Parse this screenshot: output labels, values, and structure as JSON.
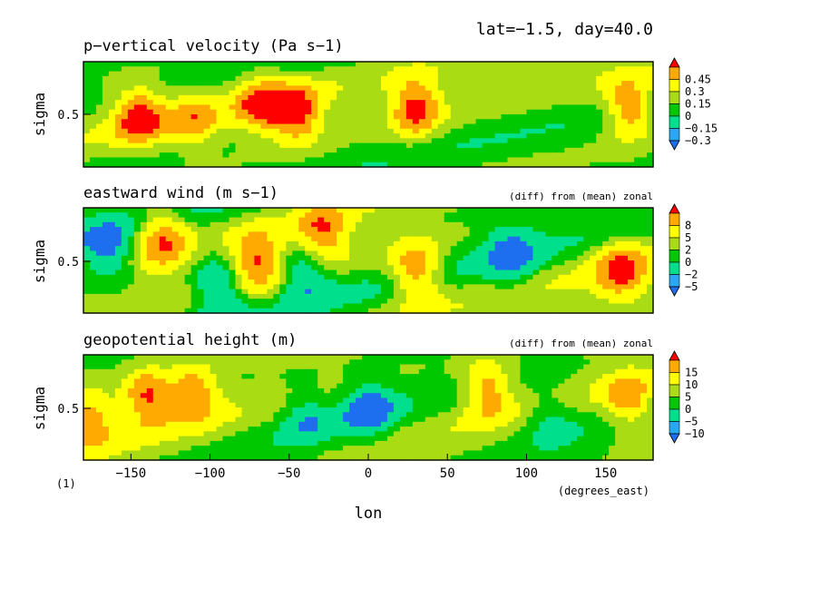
{
  "header": {
    "meta": "lat=−1.5, day=40.0",
    "footnote": "(1)"
  },
  "colors": {
    "levels": [
      "#1e6ff0",
      "#28a8f0",
      "#00e08c",
      "#00c800",
      "#aadc14",
      "#ffff00",
      "#ffaa00",
      "#ff0000"
    ]
  },
  "chart_data": [
    {
      "type": "heatmap",
      "title": "p−vertical velocity (Pa s−1)",
      "subtitle": "",
      "ylabel": "sigma",
      "yticks": [
        "0.5"
      ],
      "xlim": [
        -180,
        180
      ],
      "colorbar_labels": [
        "0.45",
        "0.3",
        "0.15",
        "0",
        "−0.15",
        "−0.3"
      ],
      "colorbar_values": [
        0.45,
        0.3,
        0.15,
        0,
        -0.15,
        -0.3
      ],
      "features": [
        {
          "lon": -145,
          "sigma": 0.5,
          "value": 0.5
        },
        {
          "lon": -110,
          "sigma": 0.55,
          "value": 0.3
        },
        {
          "lon": -68,
          "sigma": 0.4,
          "value": 0.45
        },
        {
          "lon": -45,
          "sigma": 0.5,
          "value": 0.5
        },
        {
          "lon": 30,
          "sigma": 0.45,
          "value": 0.5
        },
        {
          "lon": 165,
          "sigma": 0.45,
          "value": 0.5
        }
      ]
    },
    {
      "type": "heatmap",
      "title": "eastward wind (m s−1)",
      "subtitle": "(diff) from (mean) zonal",
      "ylabel": "sigma",
      "yticks": [
        "0.5"
      ],
      "xlim": [
        -180,
        180
      ],
      "colorbar_labels": [
        "8",
        "5",
        "2",
        "0",
        "−2",
        "−5"
      ],
      "colorbar_values": [
        8,
        5,
        2,
        0,
        -2,
        -5
      ],
      "features": [
        {
          "lon": -130,
          "sigma": 0.3,
          "value": 8
        },
        {
          "lon": -70,
          "sigma": 0.5,
          "value": 8
        },
        {
          "lon": -30,
          "sigma": 0.25,
          "value": 8
        },
        {
          "lon": 30,
          "sigma": 0.6,
          "value": 8
        },
        {
          "lon": 160,
          "sigma": 0.6,
          "value": 8
        },
        {
          "lon": -165,
          "sigma": 0.4,
          "value": -6
        },
        {
          "lon": -95,
          "sigma": 0.75,
          "value": -6
        },
        {
          "lon": -40,
          "sigma": 0.6,
          "value": -6
        },
        {
          "lon": 90,
          "sigma": 0.45,
          "value": -6
        }
      ]
    },
    {
      "type": "heatmap",
      "title": "geopotential height (m)",
      "subtitle": "(diff) from (mean) zonal",
      "ylabel": "sigma",
      "yticks": [
        "0.5"
      ],
      "xlim": [
        -180,
        180
      ],
      "xticks": [
        -150,
        -100,
        -50,
        0,
        50,
        100,
        150
      ],
      "xtick_labels": [
        "−150",
        "−100",
        "−50",
        "0",
        "50",
        "100",
        "150"
      ],
      "xlabel": "lon",
      "xunits": "(degrees_east)",
      "colorbar_labels": [
        "15",
        "10",
        "5",
        "0",
        "−5",
        "−10"
      ],
      "colorbar_values": [
        15,
        10,
        5,
        0,
        -5,
        -10
      ],
      "features": [
        {
          "lon": -140,
          "sigma": 0.4,
          "value": 18
        },
        {
          "lon": -110,
          "sigma": 0.35,
          "value": 15
        },
        {
          "lon": -175,
          "sigma": 0.6,
          "value": 16
        },
        {
          "lon": 75,
          "sigma": 0.3,
          "value": 14
        },
        {
          "lon": 165,
          "sigma": 0.45,
          "value": 14
        },
        {
          "lon": 0,
          "sigma": 0.5,
          "value": -12
        },
        {
          "lon": 115,
          "sigma": 0.6,
          "value": -8
        },
        {
          "lon": -40,
          "sigma": 0.55,
          "value": -8
        }
      ]
    }
  ]
}
